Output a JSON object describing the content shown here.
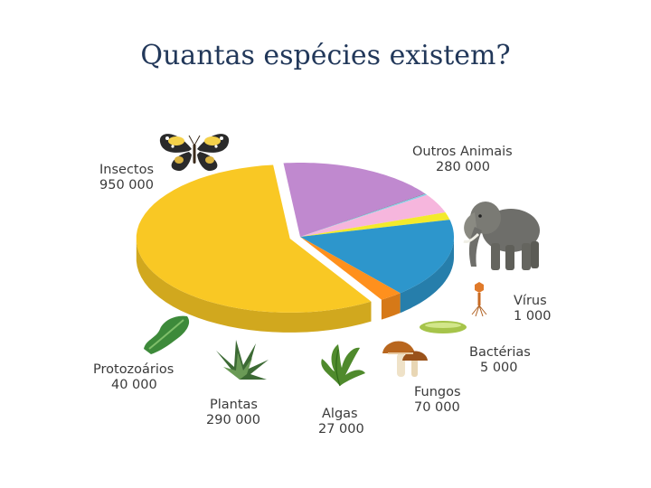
{
  "slide": {
    "title": "Quantas espécies existem?"
  },
  "colors": {
    "insectos": "#f9c824",
    "outros_animais": "#c089cf",
    "virus": "#404a4f",
    "bacterias": "#8ecde8",
    "fungos": "#f6b6dd",
    "algas": "#f3ea2c",
    "plantas": "#2d96cc",
    "protozoarios": "#ff901d"
  },
  "chart_data": {
    "type": "pie",
    "title": "",
    "slices": [
      {
        "label": "Insectos",
        "value_text": "950 000",
        "value": 950000,
        "color": "#f9c824",
        "icon": "butterfly-icon"
      },
      {
        "label": "Outros Animais",
        "value_text": "280 000",
        "value": 280000,
        "color": "#c089cf",
        "icon": "elephant-icon"
      },
      {
        "label": "Vírus",
        "value_text": "1 000",
        "value": 1000,
        "color": "#404a4f",
        "icon": "virus-icon"
      },
      {
        "label": "Bactérias",
        "value_text": "5 000",
        "value": 5000,
        "color": "#8ecde8",
        "icon": "bacterium-icon"
      },
      {
        "label": "Fungos",
        "value_text": "70 000",
        "value": 70000,
        "color": "#f6b6dd",
        "icon": "mushroom-icon"
      },
      {
        "label": "Algas",
        "value_text": "27 000",
        "value": 27000,
        "color": "#f3ea2c",
        "icon": "seaweed-icon"
      },
      {
        "label": "Plantas",
        "value_text": "290 000",
        "value": 290000,
        "color": "#2d96cc",
        "icon": "plant-icon"
      },
      {
        "label": "Protozoários",
        "value_text": "40 000",
        "value": 40000,
        "color": "#ff901d",
        "icon": "protozoan-icon"
      }
    ]
  }
}
